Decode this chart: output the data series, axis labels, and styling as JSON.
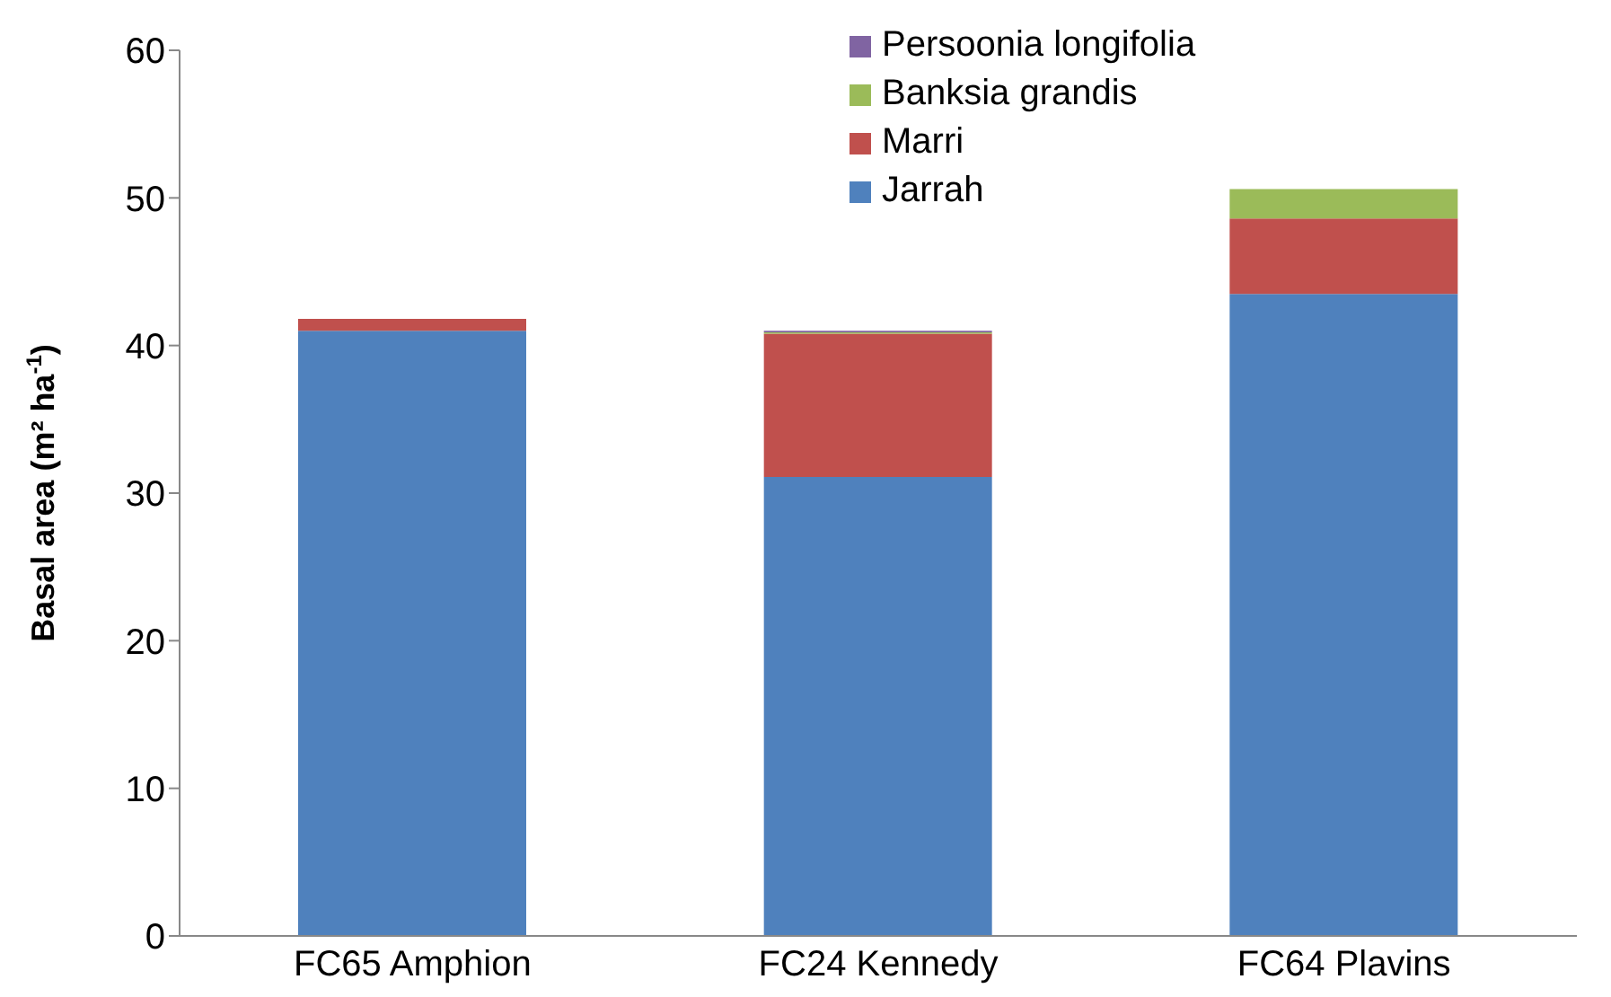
{
  "chart_data": {
    "type": "bar",
    "stacked": true,
    "ylabel": "Basal area (m² ha$^{-1}$)",
    "categories": [
      "FC65 Amphion",
      "FC24 Kennedy",
      "FC64 Plavins"
    ],
    "series": [
      {
        "name": "Jarrah",
        "color": "#4f81bd",
        "values": [
          41.0,
          31.1,
          43.5
        ]
      },
      {
        "name": "Marri",
        "color": "#c0504d",
        "values": [
          0.8,
          9.7,
          5.1
        ]
      },
      {
        "name": "Banksia grandis",
        "color": "#9bbb59",
        "values": [
          0,
          0.1,
          2.0
        ]
      },
      {
        "name": "Persoonia longifolia",
        "color": "#8064a2",
        "values": [
          0,
          0.1,
          0
        ]
      }
    ],
    "ylim": [
      0,
      60
    ],
    "yticks": [
      0,
      10,
      20,
      30,
      40,
      50,
      60
    ],
    "legend": "top"
  }
}
